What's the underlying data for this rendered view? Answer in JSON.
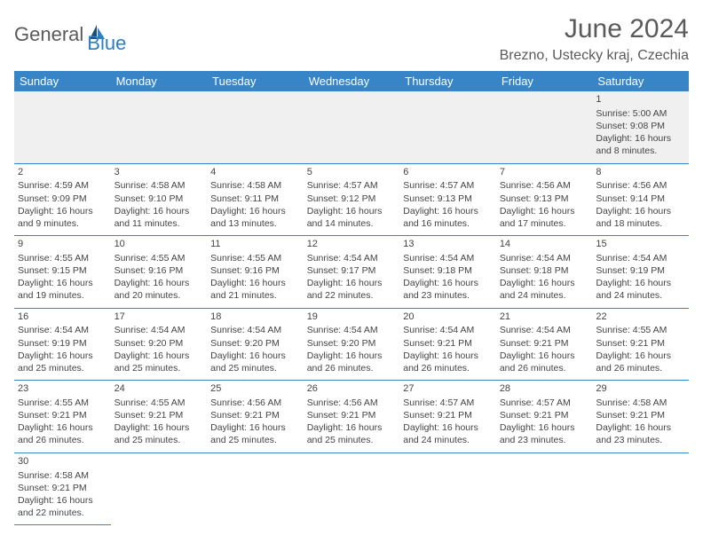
{
  "brand": {
    "name1": "General",
    "name2": "Blue"
  },
  "title": "June 2024",
  "location": "Brezno, Ustecky kraj, Czechia",
  "colors": {
    "header_bg": "#3784c6",
    "header_fg": "#ffffff",
    "rule": "#3784c6",
    "text": "#444444",
    "brand_gray": "#5a5a5a",
    "brand_blue": "#2d7dc7"
  },
  "dayNames": [
    "Sunday",
    "Monday",
    "Tuesday",
    "Wednesday",
    "Thursday",
    "Friday",
    "Saturday"
  ],
  "weeks": [
    [
      null,
      null,
      null,
      null,
      null,
      null,
      {
        "n": "1",
        "sr": "Sunrise: 5:00 AM",
        "ss": "Sunset: 9:08 PM",
        "dl": "Daylight: 16 hours and 8 minutes."
      }
    ],
    [
      {
        "n": "2",
        "sr": "Sunrise: 4:59 AM",
        "ss": "Sunset: 9:09 PM",
        "dl": "Daylight: 16 hours and 9 minutes."
      },
      {
        "n": "3",
        "sr": "Sunrise: 4:58 AM",
        "ss": "Sunset: 9:10 PM",
        "dl": "Daylight: 16 hours and 11 minutes."
      },
      {
        "n": "4",
        "sr": "Sunrise: 4:58 AM",
        "ss": "Sunset: 9:11 PM",
        "dl": "Daylight: 16 hours and 13 minutes."
      },
      {
        "n": "5",
        "sr": "Sunrise: 4:57 AM",
        "ss": "Sunset: 9:12 PM",
        "dl": "Daylight: 16 hours and 14 minutes."
      },
      {
        "n": "6",
        "sr": "Sunrise: 4:57 AM",
        "ss": "Sunset: 9:13 PM",
        "dl": "Daylight: 16 hours and 16 minutes."
      },
      {
        "n": "7",
        "sr": "Sunrise: 4:56 AM",
        "ss": "Sunset: 9:13 PM",
        "dl": "Daylight: 16 hours and 17 minutes."
      },
      {
        "n": "8",
        "sr": "Sunrise: 4:56 AM",
        "ss": "Sunset: 9:14 PM",
        "dl": "Daylight: 16 hours and 18 minutes."
      }
    ],
    [
      {
        "n": "9",
        "sr": "Sunrise: 4:55 AM",
        "ss": "Sunset: 9:15 PM",
        "dl": "Daylight: 16 hours and 19 minutes."
      },
      {
        "n": "10",
        "sr": "Sunrise: 4:55 AM",
        "ss": "Sunset: 9:16 PM",
        "dl": "Daylight: 16 hours and 20 minutes."
      },
      {
        "n": "11",
        "sr": "Sunrise: 4:55 AM",
        "ss": "Sunset: 9:16 PM",
        "dl": "Daylight: 16 hours and 21 minutes."
      },
      {
        "n": "12",
        "sr": "Sunrise: 4:54 AM",
        "ss": "Sunset: 9:17 PM",
        "dl": "Daylight: 16 hours and 22 minutes."
      },
      {
        "n": "13",
        "sr": "Sunrise: 4:54 AM",
        "ss": "Sunset: 9:18 PM",
        "dl": "Daylight: 16 hours and 23 minutes."
      },
      {
        "n": "14",
        "sr": "Sunrise: 4:54 AM",
        "ss": "Sunset: 9:18 PM",
        "dl": "Daylight: 16 hours and 24 minutes."
      },
      {
        "n": "15",
        "sr": "Sunrise: 4:54 AM",
        "ss": "Sunset: 9:19 PM",
        "dl": "Daylight: 16 hours and 24 minutes."
      }
    ],
    [
      {
        "n": "16",
        "sr": "Sunrise: 4:54 AM",
        "ss": "Sunset: 9:19 PM",
        "dl": "Daylight: 16 hours and 25 minutes."
      },
      {
        "n": "17",
        "sr": "Sunrise: 4:54 AM",
        "ss": "Sunset: 9:20 PM",
        "dl": "Daylight: 16 hours and 25 minutes."
      },
      {
        "n": "18",
        "sr": "Sunrise: 4:54 AM",
        "ss": "Sunset: 9:20 PM",
        "dl": "Daylight: 16 hours and 25 minutes."
      },
      {
        "n": "19",
        "sr": "Sunrise: 4:54 AM",
        "ss": "Sunset: 9:20 PM",
        "dl": "Daylight: 16 hours and 26 minutes."
      },
      {
        "n": "20",
        "sr": "Sunrise: 4:54 AM",
        "ss": "Sunset: 9:21 PM",
        "dl": "Daylight: 16 hours and 26 minutes."
      },
      {
        "n": "21",
        "sr": "Sunrise: 4:54 AM",
        "ss": "Sunset: 9:21 PM",
        "dl": "Daylight: 16 hours and 26 minutes."
      },
      {
        "n": "22",
        "sr": "Sunrise: 4:55 AM",
        "ss": "Sunset: 9:21 PM",
        "dl": "Daylight: 16 hours and 26 minutes."
      }
    ],
    [
      {
        "n": "23",
        "sr": "Sunrise: 4:55 AM",
        "ss": "Sunset: 9:21 PM",
        "dl": "Daylight: 16 hours and 26 minutes."
      },
      {
        "n": "24",
        "sr": "Sunrise: 4:55 AM",
        "ss": "Sunset: 9:21 PM",
        "dl": "Daylight: 16 hours and 25 minutes."
      },
      {
        "n": "25",
        "sr": "Sunrise: 4:56 AM",
        "ss": "Sunset: 9:21 PM",
        "dl": "Daylight: 16 hours and 25 minutes."
      },
      {
        "n": "26",
        "sr": "Sunrise: 4:56 AM",
        "ss": "Sunset: 9:21 PM",
        "dl": "Daylight: 16 hours and 25 minutes."
      },
      {
        "n": "27",
        "sr": "Sunrise: 4:57 AM",
        "ss": "Sunset: 9:21 PM",
        "dl": "Daylight: 16 hours and 24 minutes."
      },
      {
        "n": "28",
        "sr": "Sunrise: 4:57 AM",
        "ss": "Sunset: 9:21 PM",
        "dl": "Daylight: 16 hours and 23 minutes."
      },
      {
        "n": "29",
        "sr": "Sunrise: 4:58 AM",
        "ss": "Sunset: 9:21 PM",
        "dl": "Daylight: 16 hours and 23 minutes."
      }
    ],
    [
      {
        "n": "30",
        "sr": "Sunrise: 4:58 AM",
        "ss": "Sunset: 9:21 PM",
        "dl": "Daylight: 16 hours and 22 minutes."
      },
      null,
      null,
      null,
      null,
      null,
      null
    ]
  ]
}
